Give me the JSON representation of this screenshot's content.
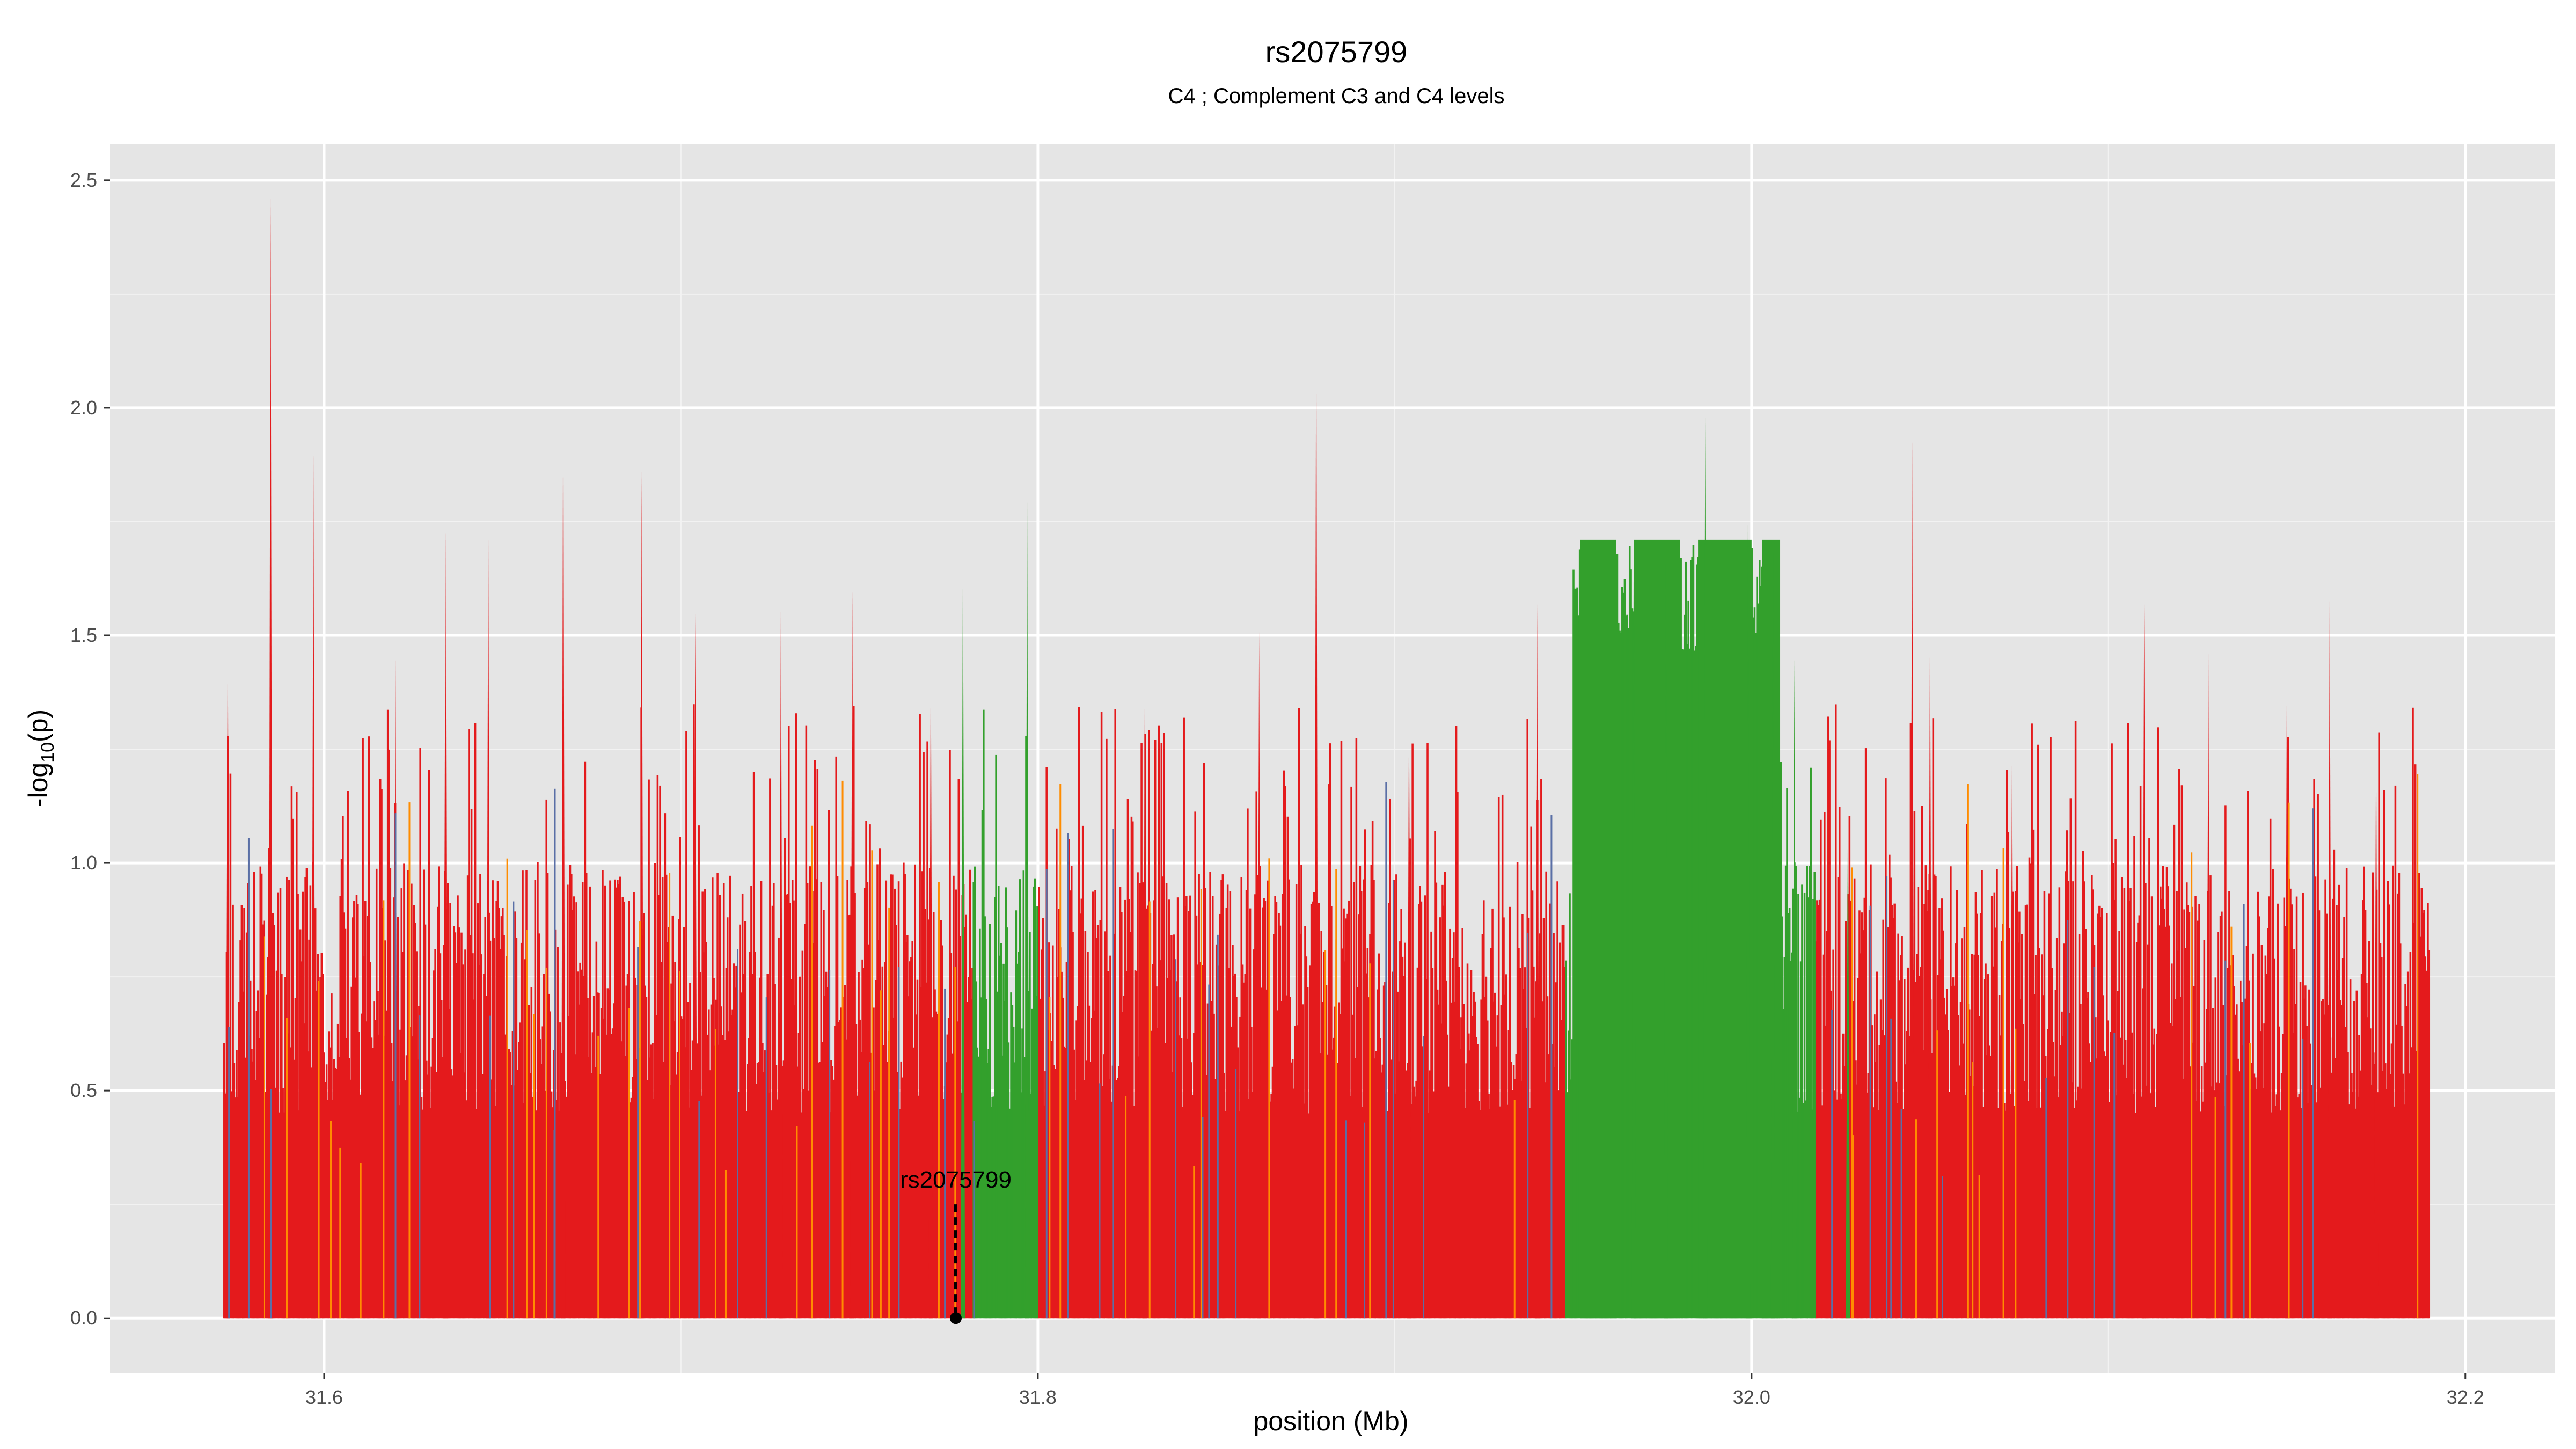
{
  "chart_data": {
    "type": "area",
    "title": "rs2075799",
    "subtitle": "C4 ; Complement C3 and C4 levels",
    "xlabel": "position (Mb)",
    "ylabel": "-log10(p)",
    "xlim": [
      31.54,
      32.225
    ],
    "ylim": [
      -0.12,
      2.58
    ],
    "x_ticks": [
      "31.6",
      "31.8",
      "32.0",
      "32.2"
    ],
    "x_tick_values": [
      31.6,
      31.8,
      32.0,
      32.2
    ],
    "y_ticks": [
      "0.0",
      "0.5",
      "1.0",
      "1.5",
      "2.0",
      "2.5"
    ],
    "y_tick_values": [
      0.0,
      0.5,
      1.0,
      1.5,
      2.0,
      2.5
    ],
    "grid": true,
    "background": "#e5e5e5",
    "colors": {
      "red": "#e41a1c",
      "green": "#33a02c",
      "orange": "#ff8c00",
      "blue": "#5a6fa6"
    },
    "x_range": [
      31.572,
      32.19
    ],
    "series": [
      {
        "color": "red",
        "segments": [
          [
            31.572,
            31.782
          ],
          [
            31.8,
            31.948
          ],
          [
            32.018,
            32.19
          ]
        ],
        "peaks": [
          {
            "x": 31.573,
            "y": 1.57
          },
          {
            "x": 31.585,
            "y": 2.46
          },
          {
            "x": 31.597,
            "y": 1.9
          },
          {
            "x": 31.62,
            "y": 1.45
          },
          {
            "x": 31.634,
            "y": 1.73
          },
          {
            "x": 31.646,
            "y": 1.78
          },
          {
            "x": 31.667,
            "y": 2.12
          },
          {
            "x": 31.689,
            "y": 1.86
          },
          {
            "x": 31.704,
            "y": 1.55
          },
          {
            "x": 31.728,
            "y": 1.61
          },
          {
            "x": 31.748,
            "y": 1.6
          },
          {
            "x": 31.77,
            "y": 1.5
          },
          {
            "x": 31.83,
            "y": 1.49
          },
          {
            "x": 31.862,
            "y": 1.51
          },
          {
            "x": 31.878,
            "y": 2.28
          },
          {
            "x": 31.904,
            "y": 1.4
          },
          {
            "x": 31.94,
            "y": 1.57
          },
          {
            "x": 32.045,
            "y": 1.93
          },
          {
            "x": 32.05,
            "y": 1.58
          },
          {
            "x": 32.073,
            "y": 1.3
          },
          {
            "x": 32.11,
            "y": 1.57
          },
          {
            "x": 32.128,
            "y": 1.47
          },
          {
            "x": 32.15,
            "y": 1.45
          },
          {
            "x": 32.162,
            "y": 1.61
          },
          {
            "x": 32.175,
            "y": 1.32
          }
        ]
      },
      {
        "color": "green",
        "segments": [
          [
            31.782,
            31.8
          ],
          [
            31.948,
            32.018
          ]
        ],
        "plateau": [
          {
            "x0": 31.952,
            "x1": 31.962,
            "y": 1.71
          },
          {
            "x0": 31.967,
            "x1": 31.98,
            "y": 1.71
          },
          {
            "x0": 31.985,
            "x1": 32.0,
            "y": 1.71
          },
          {
            "x0": 32.003,
            "x1": 32.008,
            "y": 1.71
          }
        ],
        "peaks": [
          {
            "x": 31.779,
            "y": 1.72
          },
          {
            "x": 31.797,
            "y": 1.82
          },
          {
            "x": 31.987,
            "y": 1.98
          },
          {
            "x": 31.967,
            "y": 1.8
          },
          {
            "x": 31.976,
            "y": 1.77
          },
          {
            "x": 31.999,
            "y": 1.83
          },
          {
            "x": 32.006,
            "y": 1.81
          },
          {
            "x": 32.012,
            "y": 1.45
          },
          {
            "x": 32.027,
            "y": 1.14
          }
        ]
      }
    ],
    "annotations": [
      {
        "label": "rs2075799",
        "x": 31.777,
        "y": 0.0
      }
    ]
  }
}
